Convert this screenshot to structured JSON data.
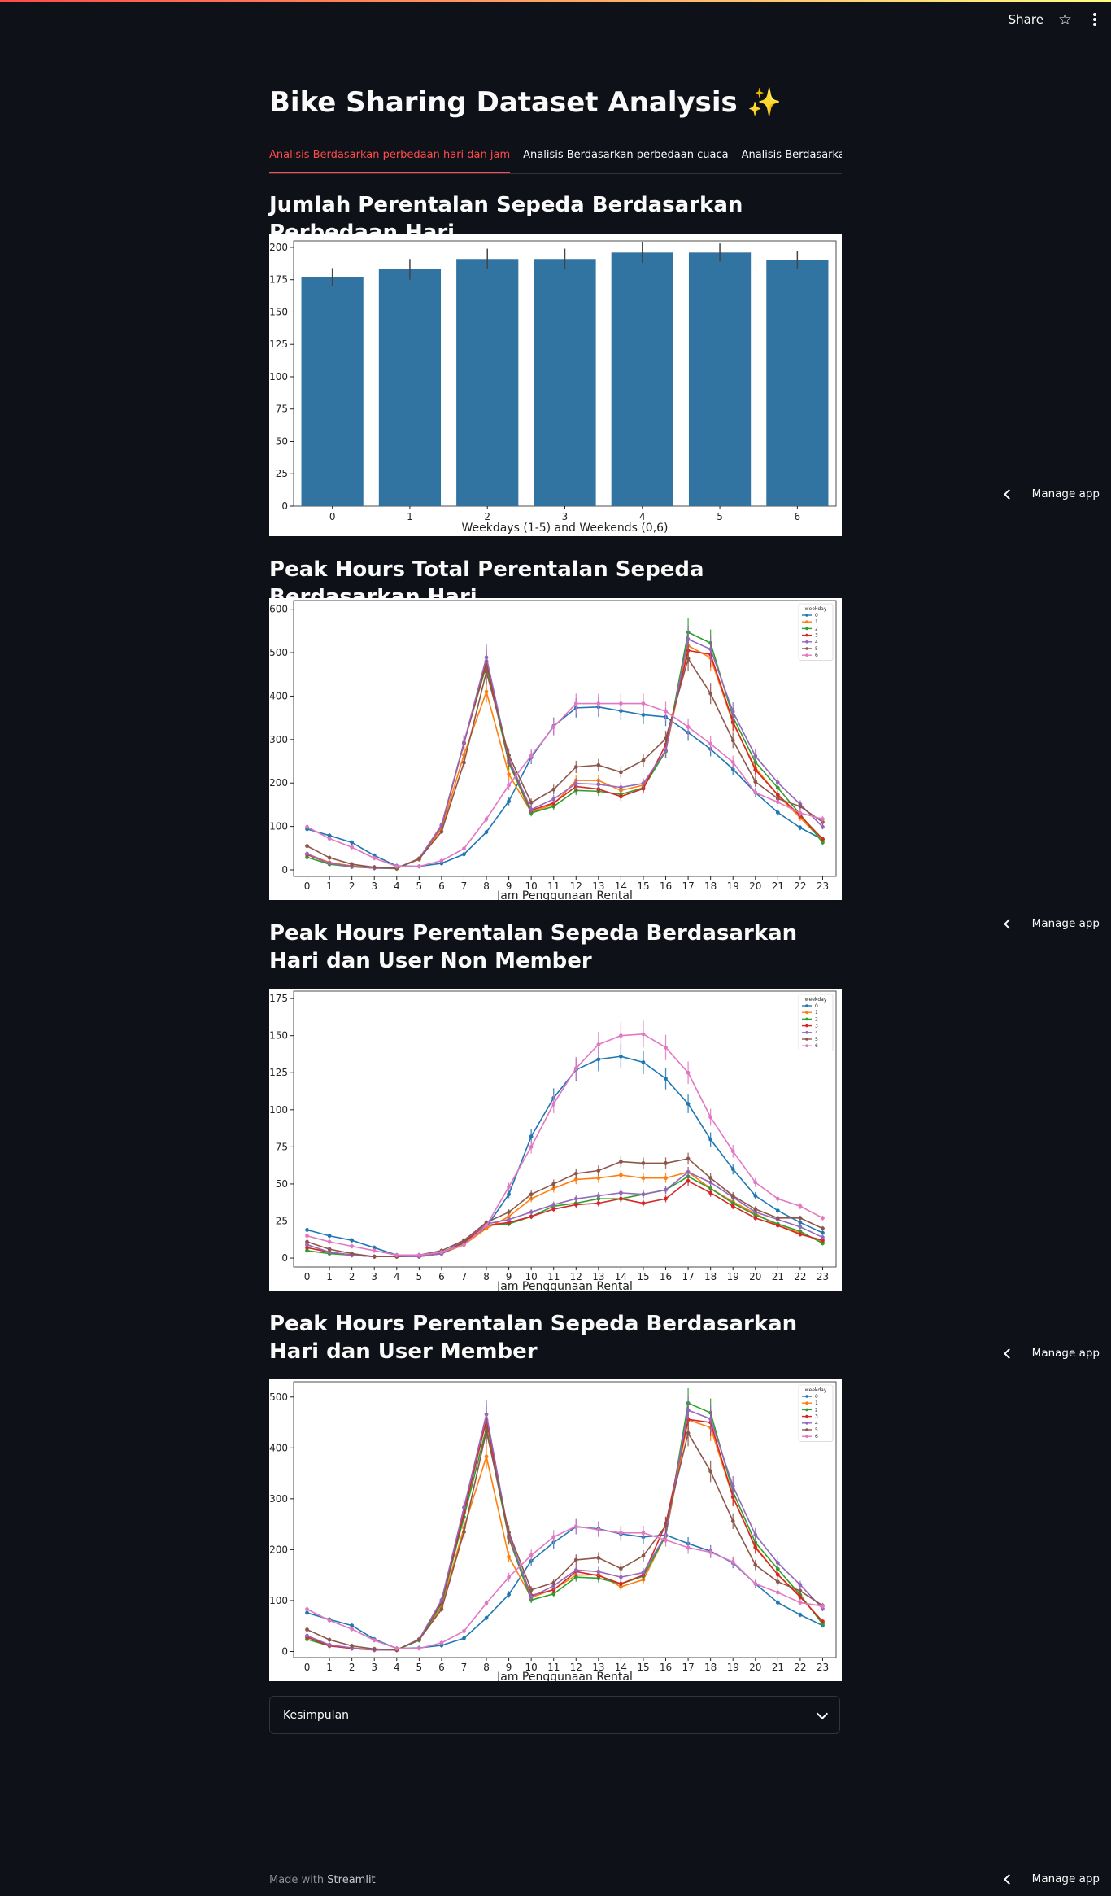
{
  "header": {
    "share_label": "Share"
  },
  "title": "Bike Sharing Dataset Analysis ✨",
  "tabs": [
    {
      "label": "Analisis Berdasarkan perbedaan hari dan jam",
      "active": true
    },
    {
      "label": "Analisis Berdasarkan perbedaan cuaca",
      "active": false
    },
    {
      "label": "Analisis Berdasarkan perbedaan musim",
      "active": false
    }
  ],
  "sections": [
    {
      "title": "Jumlah Perentalan Sepeda Berdasarkan Perbedaan Hari"
    },
    {
      "title": "Peak Hours Total Perentalan Sepeda Berdasarkan Hari"
    },
    {
      "title": "Peak Hours Perentalan Sepeda Berdasarkan Hari dan User Non Member"
    },
    {
      "title": "Peak Hours Perentalan Sepeda Berdasarkan Hari dan User Member"
    }
  ],
  "expander": {
    "label": "Kesimpulan"
  },
  "manage_app_label": "Manage app",
  "footer": {
    "prefix": "Made with",
    "brand": "Streamlit"
  },
  "colors": {
    "accent": "#ff4b4b",
    "background": "#0e1117",
    "bar": "#3274a1"
  },
  "chart_data": [
    {
      "type": "bar",
      "categories": [
        "0",
        "1",
        "2",
        "3",
        "4",
        "5",
        "6"
      ],
      "values": [
        177,
        183,
        191,
        191,
        196,
        196,
        190
      ],
      "errors": [
        7,
        8,
        8,
        8,
        8,
        7,
        7
      ],
      "xlabel": "Weekdays (1-5) and Weekends (0,6)",
      "ylabel": "",
      "ylim": [
        0,
        205
      ],
      "yticks": [
        0,
        25,
        50,
        75,
        100,
        125,
        150,
        175,
        200
      ]
    },
    {
      "type": "line",
      "x": [
        0,
        1,
        2,
        3,
        4,
        5,
        6,
        7,
        8,
        9,
        10,
        11,
        12,
        13,
        14,
        15,
        16,
        17,
        18,
        19,
        20,
        21,
        22,
        23
      ],
      "xlabel": "Jam Penggunaan Rental",
      "ylabel": "",
      "ylim": [
        -15,
        620
      ],
      "yticks": [
        0,
        100,
        200,
        300,
        400,
        500,
        600
      ],
      "legend_title": "weekday",
      "legend_position": "top-right",
      "series": [
        {
          "name": "0",
          "color": "#1f77b4",
          "values": [
            94,
            79,
            63,
            33,
            9,
            8,
            15,
            36,
            87,
            158,
            259,
            331,
            373,
            375,
            366,
            357,
            352,
            316,
            278,
            232,
            178,
            132,
            97,
            70
          ]
        },
        {
          "name": "1",
          "color": "#ff7f0e",
          "values": [
            37,
            17,
            9,
            5,
            4,
            24,
            95,
            265,
            410,
            220,
            133,
            151,
            206,
            206,
            183,
            195,
            273,
            516,
            488,
            338,
            235,
            172,
            120,
            67
          ]
        },
        {
          "name": "2",
          "color": "#2ca02c",
          "values": [
            29,
            13,
            7,
            4,
            3,
            26,
            103,
            293,
            471,
            246,
            131,
            146,
            183,
            181,
            174,
            189,
            273,
            547,
            522,
            352,
            248,
            189,
            128,
            63
          ]
        },
        {
          "name": "3",
          "color": "#d62728",
          "values": [
            35,
            15,
            8,
            4,
            4,
            26,
            101,
            291,
            480,
            252,
            137,
            154,
            192,
            186,
            169,
            187,
            288,
            505,
            496,
            341,
            230,
            173,
            125,
            71
          ]
        },
        {
          "name": "4",
          "color": "#9467bd",
          "values": [
            37,
            15,
            8,
            4,
            4,
            26,
            103,
            293,
            489,
            255,
            139,
            163,
            199,
            197,
            190,
            199,
            275,
            531,
            508,
            364,
            262,
            201,
            151,
            99
          ]
        },
        {
          "name": "5",
          "color": "#8c564b",
          "values": [
            55,
            28,
            13,
            6,
            4,
            25,
            88,
            247,
            456,
            264,
            155,
            185,
            237,
            241,
            225,
            252,
            302,
            486,
            406,
            298,
            203,
            164,
            146,
            110
          ]
        },
        {
          "name": "6",
          "color": "#e377c2",
          "values": [
            99,
            72,
            52,
            27,
            8,
            8,
            21,
            49,
            117,
            195,
            263,
            329,
            383,
            383,
            383,
            383,
            365,
            329,
            290,
            248,
            178,
            156,
            131,
            117
          ]
        }
      ]
    },
    {
      "type": "line",
      "x": [
        0,
        1,
        2,
        3,
        4,
        5,
        6,
        7,
        8,
        9,
        10,
        11,
        12,
        13,
        14,
        15,
        16,
        17,
        18,
        19,
        20,
        21,
        22,
        23
      ],
      "xlabel": "Jam Penggunaan Rental",
      "ylabel": "",
      "ylim": [
        -6,
        180
      ],
      "yticks": [
        0,
        25,
        50,
        75,
        100,
        125,
        150,
        175
      ],
      "legend_title": "weekday",
      "legend_position": "top-right",
      "series": [
        {
          "name": "0",
          "color": "#1f77b4",
          "values": [
            19,
            15,
            12,
            7,
            2,
            2,
            4,
            10,
            21,
            43,
            82,
            108,
            127,
            134,
            136,
            132,
            121,
            104,
            80,
            60,
            42,
            32,
            24,
            17
          ]
        },
        {
          "name": "1",
          "color": "#ff7f0e",
          "values": [
            9,
            4,
            2,
            1,
            1,
            1,
            3,
            9,
            20,
            28,
            40,
            47,
            53,
            54,
            56,
            54,
            54,
            58,
            47,
            38,
            30,
            22,
            17,
            11
          ]
        },
        {
          "name": "2",
          "color": "#2ca02c",
          "values": [
            5,
            3,
            2,
            1,
            1,
            1,
            3,
            10,
            22,
            23,
            28,
            35,
            37,
            40,
            40,
            43,
            46,
            55,
            47,
            37,
            29,
            23,
            18,
            10
          ]
        },
        {
          "name": "3",
          "color": "#d62728",
          "values": [
            7,
            4,
            2,
            1,
            1,
            1,
            3,
            11,
            22,
            24,
            28,
            33,
            36,
            37,
            40,
            37,
            40,
            52,
            44,
            35,
            27,
            22,
            16,
            12
          ]
        },
        {
          "name": "4",
          "color": "#9467bd",
          "values": [
            9,
            4,
            2,
            1,
            1,
            1,
            3,
            12,
            23,
            26,
            31,
            36,
            40,
            42,
            44,
            43,
            46,
            58,
            51,
            41,
            31,
            26,
            21,
            14
          ]
        },
        {
          "name": "5",
          "color": "#8c564b",
          "values": [
            11,
            6,
            3,
            1,
            1,
            2,
            5,
            12,
            24,
            31,
            43,
            50,
            57,
            59,
            65,
            64,
            64,
            67,
            54,
            42,
            33,
            27,
            27,
            20
          ]
        },
        {
          "name": "6",
          "color": "#e377c2",
          "values": [
            15,
            11,
            8,
            5,
            2,
            2,
            4,
            9,
            22,
            48,
            75,
            104,
            128,
            144,
            150,
            151,
            142,
            125,
            95,
            72,
            51,
            40,
            35,
            27
          ]
        }
      ]
    },
    {
      "type": "line",
      "x": [
        0,
        1,
        2,
        3,
        4,
        5,
        6,
        7,
        8,
        9,
        10,
        11,
        12,
        13,
        14,
        15,
        16,
        17,
        18,
        19,
        20,
        21,
        22,
        23
      ],
      "xlabel": "Jam Penggunaan Rental",
      "ylabel": "",
      "ylim": [
        -12,
        530
      ],
      "yticks": [
        0,
        100,
        200,
        300,
        400,
        500
      ],
      "legend_title": "weekday",
      "legend_position": "top-right",
      "series": [
        {
          "name": "0",
          "color": "#1f77b4",
          "values": [
            76,
            63,
            51,
            24,
            6,
            7,
            12,
            26,
            66,
            112,
            178,
            214,
            245,
            241,
            231,
            225,
            229,
            212,
            197,
            174,
            133,
            96,
            72,
            51
          ]
        },
        {
          "name": "1",
          "color": "#ff7f0e",
          "values": [
            28,
            13,
            7,
            4,
            3,
            23,
            88,
            243,
            383,
            186,
            106,
            122,
            150,
            151,
            127,
            141,
            228,
            455,
            440,
            303,
            206,
            151,
            109,
            58
          ]
        },
        {
          "name": "2",
          "color": "#2ca02c",
          "values": [
            24,
            11,
            6,
            3,
            3,
            22,
            94,
            264,
            439,
            223,
            101,
            113,
            146,
            144,
            133,
            148,
            227,
            488,
            469,
            314,
            214,
            162,
            111,
            54
          ]
        },
        {
          "name": "3",
          "color": "#d62728",
          "values": [
            28,
            11,
            6,
            3,
            3,
            24,
            98,
            273,
            455,
            226,
            110,
            121,
            157,
            149,
            133,
            150,
            250,
            456,
            450,
            304,
            204,
            151,
            107,
            59
          ]
        },
        {
          "name": "4",
          "color": "#9467bd",
          "values": [
            31,
            13,
            7,
            3,
            3,
            24,
            101,
            283,
            466,
            229,
            107,
            129,
            160,
            157,
            146,
            155,
            229,
            474,
            457,
            325,
            229,
            174,
            131,
            84
          ]
        },
        {
          "name": "5",
          "color": "#8c564b",
          "values": [
            43,
            23,
            11,
            5,
            3,
            23,
            83,
            235,
            433,
            234,
            121,
            135,
            180,
            184,
            163,
            188,
            247,
            429,
            354,
            256,
            170,
            137,
            119,
            90
          ]
        },
        {
          "name": "6",
          "color": "#e377c2",
          "values": [
            83,
            61,
            44,
            22,
            6,
            6,
            17,
            40,
            95,
            146,
            189,
            225,
            246,
            239,
            233,
            233,
            219,
            204,
            195,
            176,
            133,
            116,
            96,
            89
          ]
        }
      ]
    }
  ]
}
